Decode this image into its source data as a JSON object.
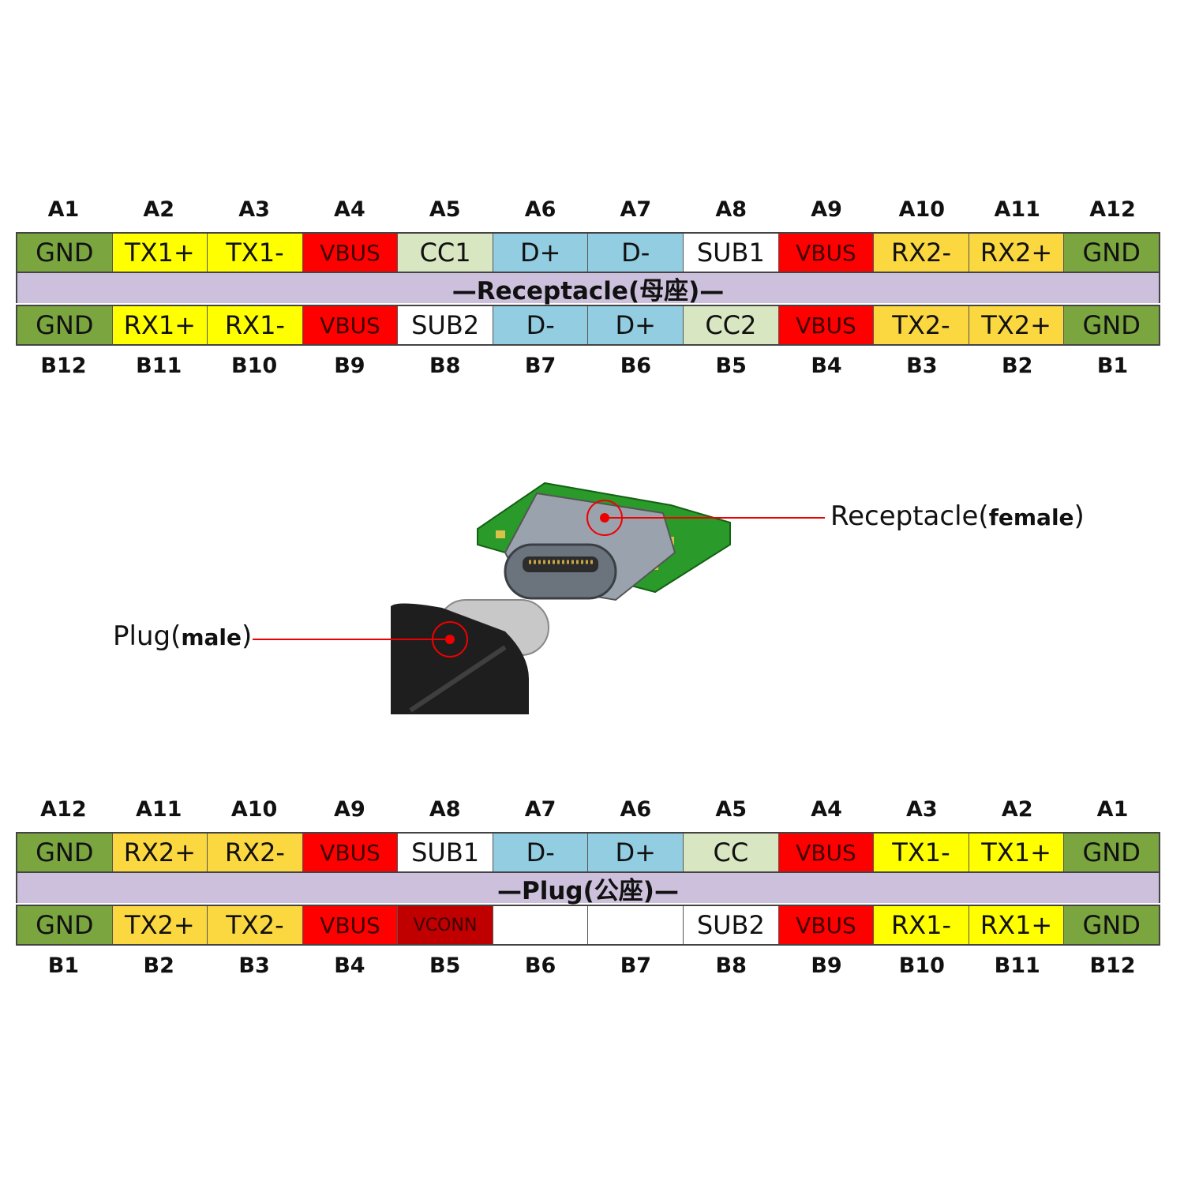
{
  "palette": {
    "gnd": "#7aa53f",
    "tx1": "#ffff00",
    "rx1": "#ffff00",
    "tx2": "#fcd840",
    "rx2": "#fcd840",
    "vbus": "#ff0000",
    "vconn": "#c00000",
    "cc": "#d9e6c2",
    "d": "#92cde2",
    "sub": "#ffffff",
    "empty": "#ffffff",
    "band": "#cdc0dc"
  },
  "receptacle": {
    "title": "—Receptacle(母座)—",
    "top_pins": [
      "A1",
      "A2",
      "A3",
      "A4",
      "A5",
      "A6",
      "A7",
      "A8",
      "A9",
      "A10",
      "A11",
      "A12"
    ],
    "top_cells": [
      {
        "label": "GND",
        "type": "gnd"
      },
      {
        "label": "TX1+",
        "type": "tx1"
      },
      {
        "label": "TX1-",
        "type": "tx1"
      },
      {
        "label": "VBUS",
        "type": "vbus"
      },
      {
        "label": "CC1",
        "type": "cc"
      },
      {
        "label": "D+",
        "type": "d"
      },
      {
        "label": "D-",
        "type": "d"
      },
      {
        "label": "SUB1",
        "type": "sub"
      },
      {
        "label": "VBUS",
        "type": "vbus"
      },
      {
        "label": "RX2-",
        "type": "rx2"
      },
      {
        "label": "RX2+",
        "type": "rx2"
      },
      {
        "label": "GND",
        "type": "gnd"
      }
    ],
    "bottom_cells": [
      {
        "label": "GND",
        "type": "gnd"
      },
      {
        "label": "RX1+",
        "type": "rx1"
      },
      {
        "label": "RX1-",
        "type": "rx1"
      },
      {
        "label": "VBUS",
        "type": "vbus"
      },
      {
        "label": "SUB2",
        "type": "sub"
      },
      {
        "label": "D-",
        "type": "d"
      },
      {
        "label": "D+",
        "type": "d"
      },
      {
        "label": "CC2",
        "type": "cc"
      },
      {
        "label": "VBUS",
        "type": "vbus"
      },
      {
        "label": "TX2-",
        "type": "tx2"
      },
      {
        "label": "TX2+",
        "type": "tx2"
      },
      {
        "label": "GND",
        "type": "gnd"
      }
    ],
    "bottom_pins": [
      "B12",
      "B11",
      "B10",
      "B9",
      "B8",
      "B7",
      "B6",
      "B5",
      "B4",
      "B3",
      "B2",
      "B1"
    ]
  },
  "plug": {
    "title": "—Plug(公座)—",
    "top_pins": [
      "A12",
      "A11",
      "A10",
      "A9",
      "A8",
      "A7",
      "A6",
      "A5",
      "A4",
      "A3",
      "A2",
      "A1"
    ],
    "top_cells": [
      {
        "label": "GND",
        "type": "gnd"
      },
      {
        "label": "RX2+",
        "type": "rx2"
      },
      {
        "label": "RX2-",
        "type": "rx2"
      },
      {
        "label": "VBUS",
        "type": "vbus"
      },
      {
        "label": "SUB1",
        "type": "sub"
      },
      {
        "label": "D-",
        "type": "d"
      },
      {
        "label": "D+",
        "type": "d"
      },
      {
        "label": "CC",
        "type": "cc"
      },
      {
        "label": "VBUS",
        "type": "vbus"
      },
      {
        "label": "TX1-",
        "type": "tx1"
      },
      {
        "label": "TX1+",
        "type": "tx1"
      },
      {
        "label": "GND",
        "type": "gnd"
      }
    ],
    "bottom_cells": [
      {
        "label": "GND",
        "type": "gnd"
      },
      {
        "label": "TX2+",
        "type": "tx2"
      },
      {
        "label": "TX2-",
        "type": "tx2"
      },
      {
        "label": "VBUS",
        "type": "vbus"
      },
      {
        "label": "VCONN",
        "type": "vconn"
      },
      {
        "label": "",
        "type": "empty"
      },
      {
        "label": "",
        "type": "empty"
      },
      {
        "label": "SUB2",
        "type": "sub"
      },
      {
        "label": "VBUS",
        "type": "vbus"
      },
      {
        "label": "RX1-",
        "type": "rx1"
      },
      {
        "label": "RX1+",
        "type": "rx1"
      },
      {
        "label": "GND",
        "type": "gnd"
      }
    ],
    "bottom_pins": [
      "B1",
      "B2",
      "B3",
      "B4",
      "B5",
      "B6",
      "B7",
      "B8",
      "B9",
      "B10",
      "B11",
      "B12"
    ]
  },
  "callouts": {
    "receptacle_main": "Receptacle(",
    "receptacle_sub": "female",
    "receptacle_end": ")",
    "plug_main": "Plug(",
    "plug_sub": "male",
    "plug_end": ")"
  }
}
